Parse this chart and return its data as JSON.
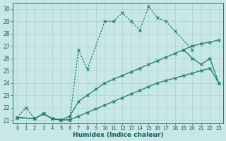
{
  "xlabel": "Humidex (Indice chaleur)",
  "background_color": "#c8e8e8",
  "grid_color": "#b0d0d0",
  "line_color": "#1a7a6e",
  "xlim": [
    -0.5,
    23.5
  ],
  "ylim": [
    20.7,
    30.5
  ],
  "xticks": [
    0,
    1,
    2,
    3,
    4,
    5,
    6,
    7,
    8,
    9,
    10,
    11,
    12,
    13,
    14,
    15,
    16,
    17,
    18,
    19,
    20,
    21,
    22,
    23
  ],
  "yticks": [
    21,
    22,
    23,
    24,
    25,
    26,
    27,
    28,
    29,
    30
  ],
  "series": [
    {
      "segments": [
        {
          "x": [
            0,
            1,
            2,
            3,
            4,
            5,
            6,
            7,
            8,
            10,
            11,
            12,
            13,
            14,
            15,
            16,
            17,
            18,
            20
          ],
          "y": [
            21.2,
            22.0,
            21.1,
            21.5,
            21.1,
            21.0,
            21.0,
            26.7,
            25.1,
            29.0,
            29.0,
            29.7,
            29.0,
            28.3,
            30.2,
            29.3,
            29.0,
            28.2,
            26.7
          ]
        }
      ],
      "linestyle": "dotted",
      "lw": 0.9,
      "markersize": 3
    },
    {
      "segments": [
        {
          "x": [
            19,
            20,
            21,
            22,
            23
          ],
          "y": [
            26.7,
            26.0,
            25.5,
            26.0,
            24.0
          ]
        }
      ],
      "linestyle": "solid",
      "lw": 0.9,
      "markersize": 3
    },
    {
      "segments": [
        {
          "x": [
            0,
            2,
            3,
            4,
            5,
            6,
            7,
            8,
            9,
            10,
            11,
            12,
            13,
            14,
            15,
            16,
            17,
            18,
            19,
            20,
            21,
            22,
            23
          ],
          "y": [
            21.2,
            21.1,
            21.5,
            21.1,
            21.0,
            21.3,
            22.5,
            23.0,
            23.5,
            24.0,
            24.3,
            24.6,
            24.9,
            25.2,
            25.5,
            25.8,
            26.1,
            26.4,
            26.7,
            27.0,
            27.2,
            27.3,
            27.5
          ]
        }
      ],
      "linestyle": "solid",
      "lw": 0.9,
      "markersize": 3
    },
    {
      "segments": [
        {
          "x": [
            0,
            2,
            3,
            4,
            5,
            6,
            7,
            8,
            9,
            10,
            11,
            12,
            13,
            14,
            15,
            16,
            17,
            18,
            19,
            20,
            21,
            22,
            23
          ],
          "y": [
            21.2,
            21.1,
            21.5,
            21.1,
            21.0,
            21.0,
            21.3,
            21.6,
            21.9,
            22.2,
            22.5,
            22.8,
            23.1,
            23.4,
            23.7,
            24.0,
            24.2,
            24.4,
            24.6,
            24.8,
            25.0,
            25.2,
            24.0
          ]
        }
      ],
      "linestyle": "solid",
      "lw": 0.9,
      "markersize": 3
    }
  ]
}
